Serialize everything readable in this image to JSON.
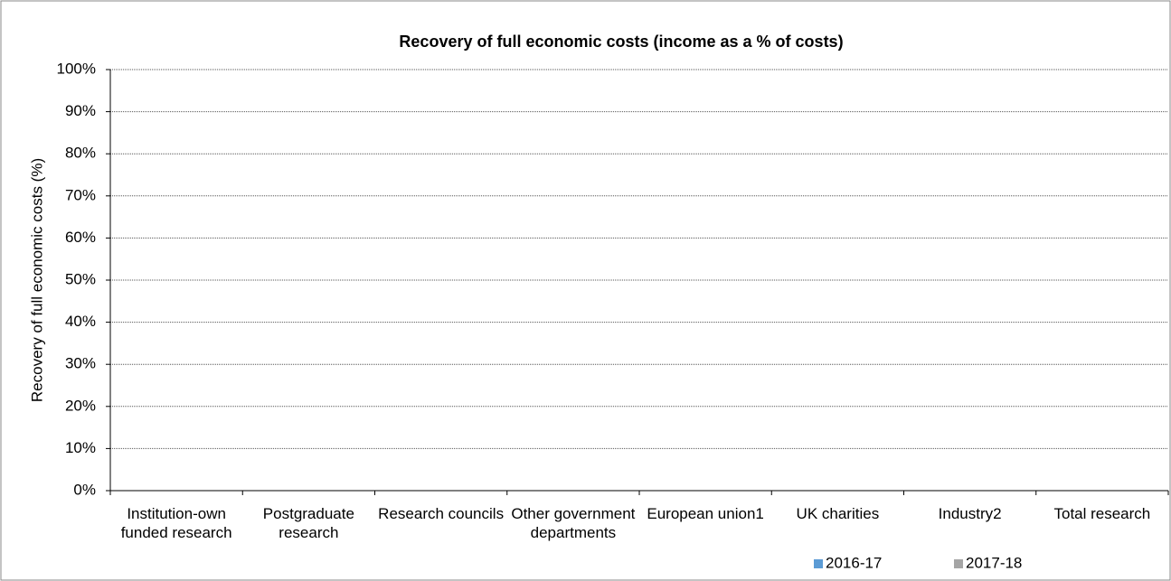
{
  "chart_data": {
    "type": "bar",
    "title": "Recovery of full economic costs (income as a % of costs)",
    "y_label": "Recovery of full economic costs (%)",
    "categories": [
      "Institution-own funded research",
      "Postgraduate research",
      "Research councils",
      "Other government departments",
      "European union1",
      "UK charities",
      "Industry2",
      "Total research"
    ],
    "series": [
      {
        "name": "2016-17",
        "color": "#5b9bd5",
        "values": [
          null,
          null,
          null,
          null,
          null,
          null,
          null,
          null
        ]
      },
      {
        "name": "2017-18",
        "color": "#a5a5a5",
        "values": [
          null,
          null,
          null,
          null,
          null,
          null,
          null,
          null
        ]
      }
    ],
    "ylim": [
      0,
      100
    ],
    "yticks": [
      {
        "value": 0,
        "label": "0%"
      },
      {
        "value": 10,
        "label": "10%"
      },
      {
        "value": 20,
        "label": "20%"
      },
      {
        "value": 30,
        "label": "30%"
      },
      {
        "value": 40,
        "label": "40%"
      },
      {
        "value": 50,
        "label": "50%"
      },
      {
        "value": 60,
        "label": "60%"
      },
      {
        "value": 70,
        "label": "70%"
      },
      {
        "value": 80,
        "label": "80%"
      },
      {
        "value": 90,
        "label": "90%"
      },
      {
        "value": 100,
        "label": "100%"
      }
    ],
    "grid": true,
    "legend": "bottom-right"
  }
}
